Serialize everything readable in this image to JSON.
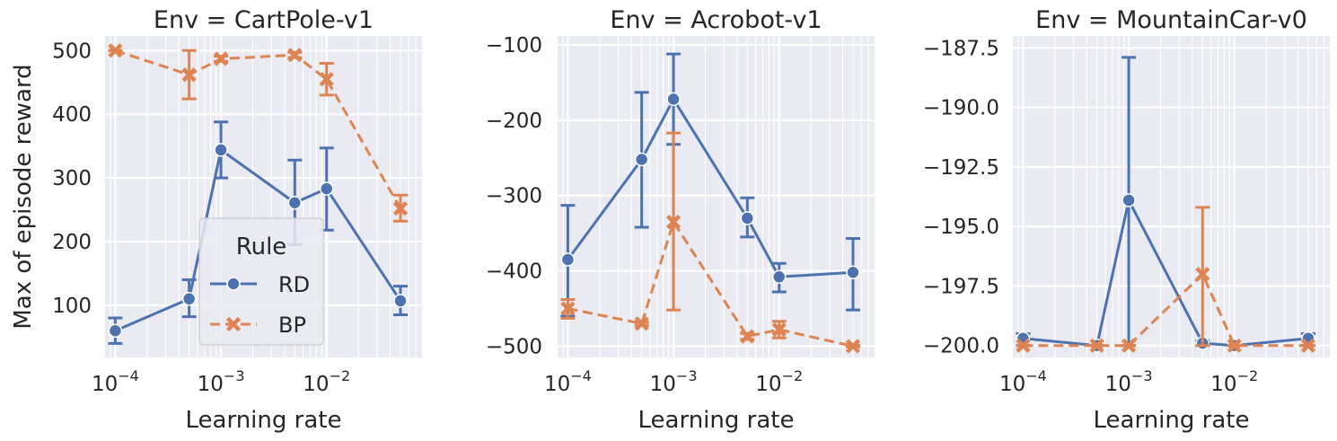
{
  "colors": {
    "RD": "#4c72b0",
    "BP": "#dd8452",
    "panel_bg": "#eaeaf2",
    "grid": "#ffffff"
  },
  "chart_data": [
    {
      "type": "line",
      "title": "Env = CartPole-v1",
      "xlabel": "Learning rate",
      "ylabel": "Max of episode reward",
      "xscale": "log",
      "xlim": [
        8e-05,
        0.08
      ],
      "ylim": [
        18,
        523
      ],
      "yticks": [
        100,
        200,
        300,
        400,
        500
      ],
      "ytick_labels": [
        "100",
        "200",
        "300",
        "400",
        "500"
      ],
      "grid": true,
      "legend": {
        "title": "Rule",
        "placement": "lower-center",
        "entries": [
          "RD",
          "BP"
        ]
      },
      "series": [
        {
          "name": "RD",
          "x": [
            0.0001,
            0.0005,
            0.001,
            0.005,
            0.01,
            0.05
          ],
          "y": [
            60,
            110,
            344,
            261,
            283,
            107
          ],
          "err_low": [
            40,
            82,
            300,
            195,
            218,
            85
          ],
          "err_high": [
            80,
            140,
            388,
            328,
            347,
            130
          ]
        },
        {
          "name": "BP",
          "x": [
            0.0001,
            0.0005,
            0.001,
            0.005,
            0.01,
            0.05
          ],
          "y": [
            500,
            462,
            487,
            493,
            455,
            252
          ],
          "err_low": [
            500,
            424,
            483,
            489,
            430,
            232
          ],
          "err_high": [
            500,
            500,
            491,
            497,
            480,
            273
          ]
        }
      ]
    },
    {
      "type": "line",
      "title": "Env = Acrobot-v1",
      "xlabel": "Learning rate",
      "ylabel": "",
      "xscale": "log",
      "xlim": [
        8e-05,
        0.08
      ],
      "ylim": [
        -515,
        -88
      ],
      "yticks": [
        -500,
        -400,
        -300,
        -200,
        -100
      ],
      "ytick_labels": [
        "−500",
        "−400",
        "−300",
        "−200",
        "−100"
      ],
      "grid": true,
      "series": [
        {
          "name": "RD",
          "x": [
            0.0001,
            0.0005,
            0.001,
            0.005,
            0.01,
            0.05
          ],
          "y": [
            -385,
            -252,
            -172,
            -330,
            -408,
            -402
          ],
          "err_low": [
            -460,
            -342,
            -232,
            -355,
            -428,
            -452
          ],
          "err_high": [
            -313,
            -163,
            -112,
            -303,
            -390,
            -357
          ]
        },
        {
          "name": "BP",
          "x": [
            0.0001,
            0.0005,
            0.001,
            0.005,
            0.01,
            0.05
          ],
          "y": [
            -450,
            -470,
            -335,
            -487,
            -478,
            -500
          ],
          "err_low": [
            -463,
            -472,
            -452,
            -491,
            -489,
            -501
          ],
          "err_high": [
            -438,
            -468,
            -217,
            -483,
            -467,
            -499
          ]
        }
      ]
    },
    {
      "type": "line",
      "title": "Env = MountainCar-v0",
      "xlabel": "Learning rate",
      "ylabel": "",
      "xscale": "log",
      "xlim": [
        8e-05,
        0.08
      ],
      "ylim": [
        -200.5,
        -187.0
      ],
      "yticks": [
        -200.0,
        -197.5,
        -195.0,
        -192.5,
        -190.0,
        -187.5
      ],
      "ytick_labels": [
        "−200.0",
        "−197.5",
        "−195.0",
        "−192.5",
        "−190.0",
        "−187.5"
      ],
      "grid": true,
      "series": [
        {
          "name": "RD",
          "x": [
            0.0001,
            0.0005,
            0.001,
            0.005,
            0.01,
            0.05
          ],
          "y": [
            -199.7,
            -200.0,
            -193.9,
            -199.9,
            -200.0,
            -199.7
          ],
          "err_low": [
            -200.0,
            -200.0,
            -200.0,
            -200.0,
            -200.0,
            -200.0
          ],
          "err_high": [
            -199.5,
            -200.0,
            -187.9,
            -199.8,
            -200.0,
            -199.5
          ]
        },
        {
          "name": "BP",
          "x": [
            0.0001,
            0.0005,
            0.001,
            0.005,
            0.01,
            0.05
          ],
          "y": [
            -200.0,
            -200.0,
            -200.0,
            -197.0,
            -200.0,
            -200.0
          ],
          "err_low": [
            -200.0,
            -200.0,
            -200.0,
            -200.0,
            -200.0,
            -200.0
          ],
          "err_high": [
            -200.0,
            -200.0,
            -200.0,
            -194.2,
            -200.0,
            -200.0
          ]
        }
      ]
    }
  ]
}
